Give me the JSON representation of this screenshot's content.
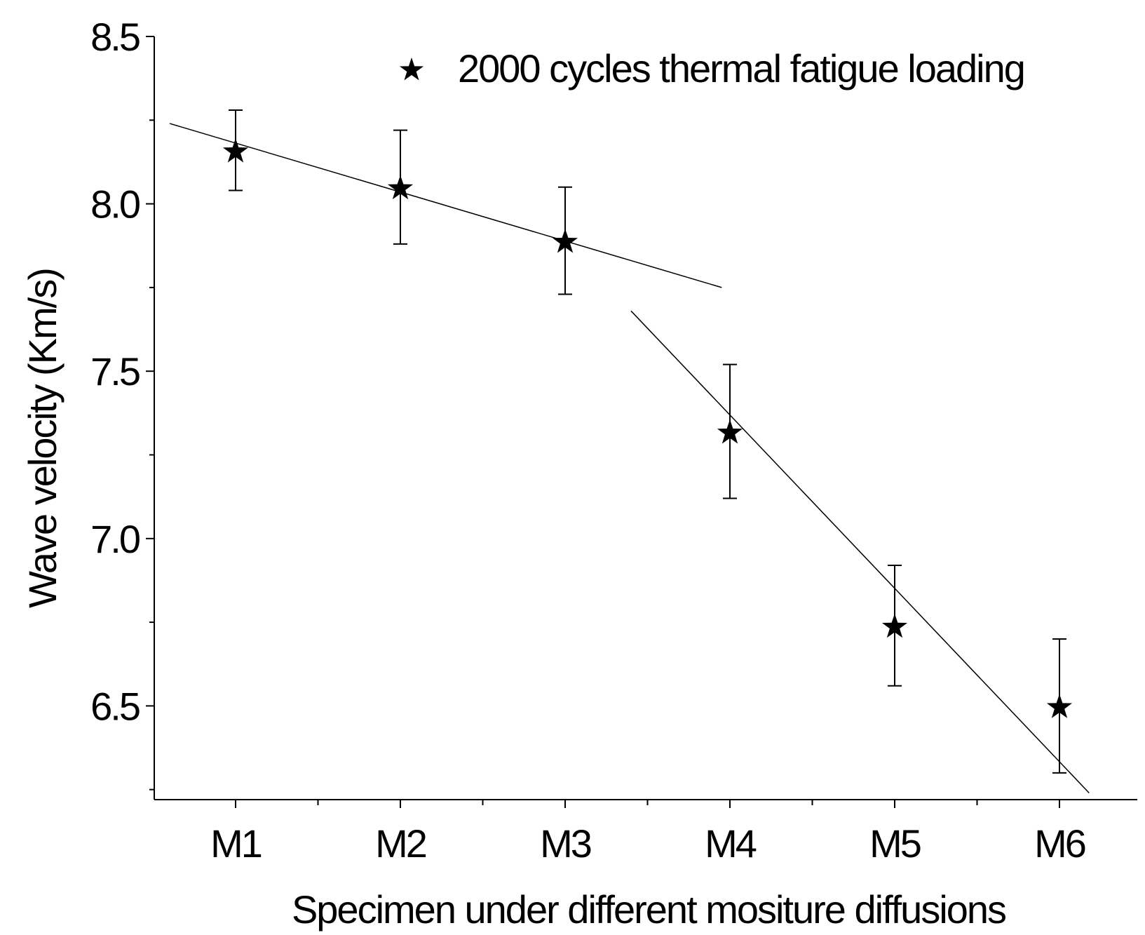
{
  "chart_data": {
    "type": "scatter",
    "title": "",
    "xlabel": "Specimen under different mositure diffusions",
    "ylabel": "Wave velocity (Km/s)",
    "categories": [
      "M1",
      "M2",
      "M3",
      "M4",
      "M5",
      "M6"
    ],
    "ylim": [
      6.22,
      8.5
    ],
    "yticks": [
      6.5,
      7.0,
      7.5,
      8.0,
      8.5
    ],
    "ytick_labels": [
      "6.5",
      "7.0",
      "7.5",
      "8.0",
      "8.5"
    ],
    "grid": false,
    "legend_position": "top-right",
    "series": [
      {
        "name": "2000 cycles thermal fatigue loading",
        "marker": "star",
        "values": [
          8.16,
          8.05,
          7.89,
          7.32,
          6.74,
          6.5
        ],
        "error_low": [
          8.04,
          7.88,
          7.73,
          7.12,
          6.56,
          6.3
        ],
        "error_high": [
          8.28,
          8.22,
          8.05,
          7.52,
          6.92,
          6.7
        ]
      }
    ],
    "trend_lines": [
      {
        "name": "trend-line-1",
        "x": [
          0.6,
          3.95
        ],
        "y": [
          8.24,
          7.75
        ]
      },
      {
        "name": "trend-line-2",
        "x": [
          3.4,
          6.18
        ],
        "y": [
          7.68,
          6.24
        ]
      }
    ],
    "colors": {
      "ink": "#000000",
      "background": "#ffffff"
    }
  }
}
